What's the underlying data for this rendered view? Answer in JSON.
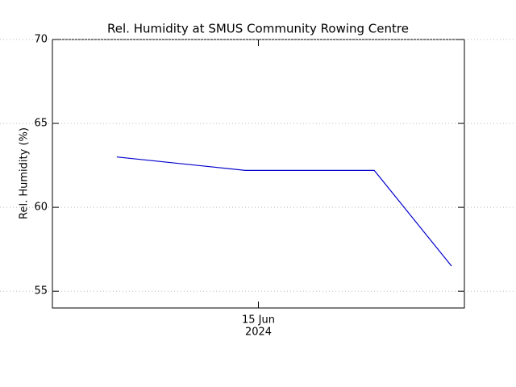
{
  "chart_data": {
    "type": "line",
    "title": "Rel. Humidity at SMUS Community Rowing Centre",
    "y_label": "Rel. Humidity (%)",
    "x": [
      -11,
      -1,
      9,
      15
    ],
    "series": [
      {
        "name": "Rel. Humidity",
        "color": "#0000cc",
        "values": [
          63.0,
          62.2,
          62.2,
          56.5
        ]
      }
    ],
    "xlim": [
      -16,
      16
    ],
    "xticks": [
      {
        "value": 0,
        "label": "15 Jun",
        "year": "2024"
      }
    ],
    "ylim": [
      54,
      70
    ],
    "yticks": [
      55,
      60,
      65,
      70
    ],
    "grid": true
  }
}
